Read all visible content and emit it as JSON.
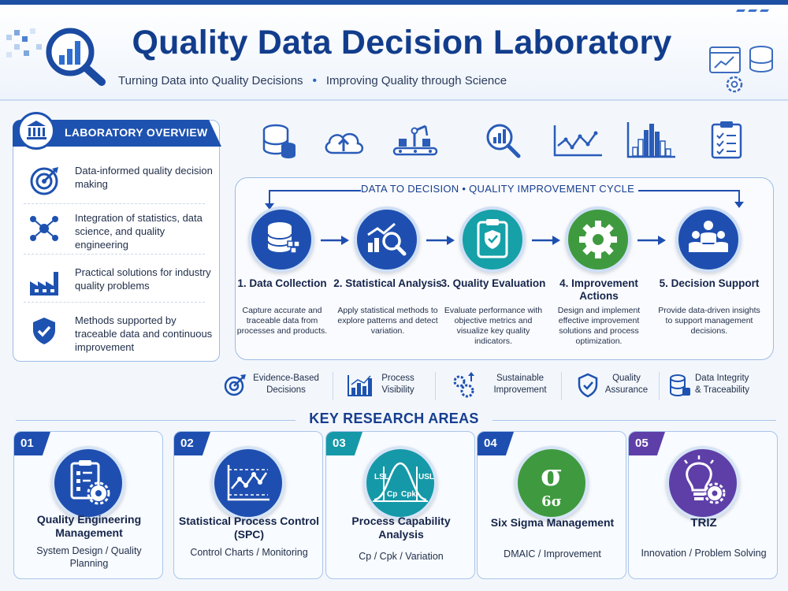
{
  "header": {
    "title": "Quality Data Decision Laboratory",
    "subtitle_left": "Turning Data into Quality Decisions",
    "subtitle_sep": "•",
    "subtitle_right": "Improving Quality through Science"
  },
  "overview": {
    "title": "LABORATORY OVERVIEW",
    "items": [
      {
        "text": "Data-informed quality decision making",
        "icon": "target-icon"
      },
      {
        "text": "Integration of statistics, data science, and quality engineering",
        "icon": "network-icon"
      },
      {
        "text": "Practical solutions for industry quality problems",
        "icon": "factory-icon"
      },
      {
        "text": "Methods supported by traceable data and continuous improvement",
        "icon": "shield-check-icon"
      }
    ]
  },
  "top_icons": [
    "database-icon",
    "cloud-upload-icon",
    "conveyor-robot-icon",
    "magnifier-chart-icon",
    "line-chart-icon",
    "histogram-icon",
    "checklist-icon"
  ],
  "cycle": {
    "title": "DATA TO DECISION  •  QUALITY IMPROVEMENT CYCLE",
    "steps": [
      {
        "title": "1. Data Collection",
        "desc": "Capture accurate and traceable data from processes and products.",
        "color": "#1e4fb0",
        "icon": "database-icon"
      },
      {
        "title": "2. Statistical Analysis",
        "desc": "Apply statistical methods to explore patterns and detect variation.",
        "color": "#1e4fb0",
        "icon": "analysis-icon"
      },
      {
        "title": "3. Quality Evaluation",
        "desc": "Evaluate performance with objective metrics and visualize key quality indicators.",
        "color": "#16a0a8",
        "icon": "clipboard-shield-icon"
      },
      {
        "title": "4. Improvement Actions",
        "desc": "Design and implement effective improvement solutions and process optimization.",
        "color": "#3f9a3f",
        "icon": "gear-icon"
      },
      {
        "title": "5. Decision Support",
        "desc": "Provide data-driven insights to support management decisions.",
        "color": "#1e4fb0",
        "icon": "team-icon"
      }
    ]
  },
  "benefits": [
    {
      "label": "Evidence-Based Decisions",
      "icon": "target-icon"
    },
    {
      "label": "Process Visibility",
      "icon": "bar-chart-icon"
    },
    {
      "label": "Sustainable Improvement",
      "icon": "gears-arrows-icon"
    },
    {
      "label": "Quality Assurance",
      "icon": "shield-check-icon"
    },
    {
      "label": "Data Integrity & Traceability",
      "icon": "database-icon"
    }
  ],
  "research": {
    "title": "KEY RESEARCH AREAS",
    "cards": [
      {
        "num": "01",
        "title": "Quality Engineering Management",
        "sub": "System Design / Quality Planning",
        "color": "#1e4fb0",
        "icon": "clipboard-gear-icon"
      },
      {
        "num": "02",
        "title": "Statistical Process Control (SPC)",
        "sub": "Control Charts / Monitoring",
        "color": "#1e4fb0",
        "icon": "control-chart-icon"
      },
      {
        "num": "03",
        "title": "Process Capability Analysis",
        "sub": "Cp / Cpk / Variation",
        "color": "#1599a8",
        "icon": "capability-curve-icon",
        "labels": {
          "lsl": "LSL",
          "usl": "USL",
          "cp": "Cp",
          "cpk": "Cpk"
        }
      },
      {
        "num": "04",
        "title": "Six Sigma Management",
        "sub": "DMAIC / Improvement",
        "color": "#3f9a3f",
        "icon": "sigma-icon",
        "labels": {
          "sigma": "σ",
          "six_sigma": "6σ"
        }
      },
      {
        "num": "05",
        "title": "TRIZ",
        "sub": "Innovation / Problem Solving",
        "color": "#5e3fa8",
        "icon": "lightbulb-gear-icon"
      }
    ]
  }
}
